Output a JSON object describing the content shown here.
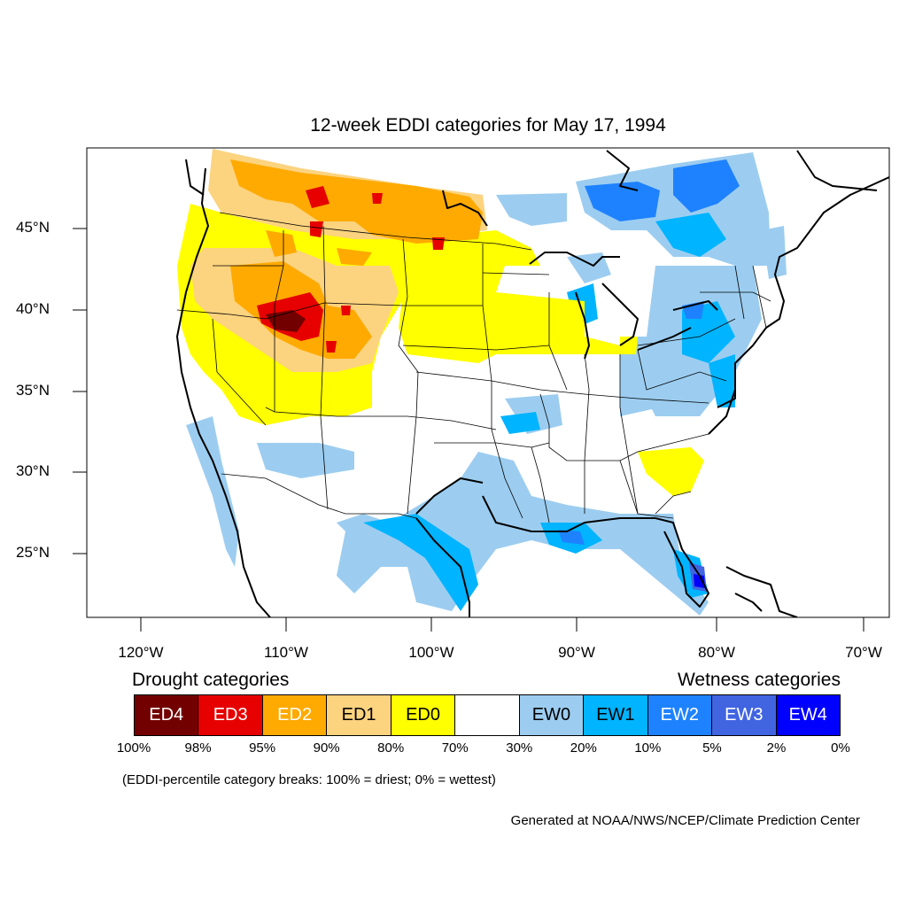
{
  "title": "12-week EDDI categories for May 17, 1994",
  "latitude_labels": [
    "45°N",
    "40°N",
    "35°N",
    "30°N",
    "25°N"
  ],
  "longitude_labels": [
    "120°W",
    "110°W",
    "100°W",
    "90°W",
    "80°W",
    "70°W"
  ],
  "legend": {
    "drought_heading": "Drought categories",
    "wetness_heading": "Wetness categories",
    "categories": [
      {
        "label": "ED4",
        "color": "#730000",
        "text_color": "#ffffff"
      },
      {
        "label": "ED3",
        "color": "#e60000",
        "text_color": "#ffffff"
      },
      {
        "label": "ED2",
        "color": "#ffaa00",
        "text_color": "#ffffff"
      },
      {
        "label": "ED1",
        "color": "#fcd37f",
        "text_color": "#000000"
      },
      {
        "label": "ED0",
        "color": "#ffff00",
        "text_color": "#000000"
      },
      {
        "label": "",
        "color": "#ffffff",
        "text_color": "#000000"
      },
      {
        "label": "EW0",
        "color": "#9ccdf0",
        "text_color": "#000000"
      },
      {
        "label": "EW1",
        "color": "#00b4ff",
        "text_color": "#000000"
      },
      {
        "label": "EW2",
        "color": "#1e82ff",
        "text_color": "#ffffff"
      },
      {
        "label": "EW3",
        "color": "#4164e1",
        "text_color": "#ffffff"
      },
      {
        "label": "EW4",
        "color": "#0000ff",
        "text_color": "#ffffff"
      }
    ],
    "ticks": [
      "100%",
      "98%",
      "95%",
      "90%",
      "80%",
      "70%",
      "30%",
      "20%",
      "10%",
      "5%",
      "2%",
      "0%"
    ]
  },
  "note": "(EDDI-percentile category breaks: 100% = driest; 0% = wettest)",
  "credit": "Generated at NOAA/NWS/NCEP/Climate Prediction Center"
}
